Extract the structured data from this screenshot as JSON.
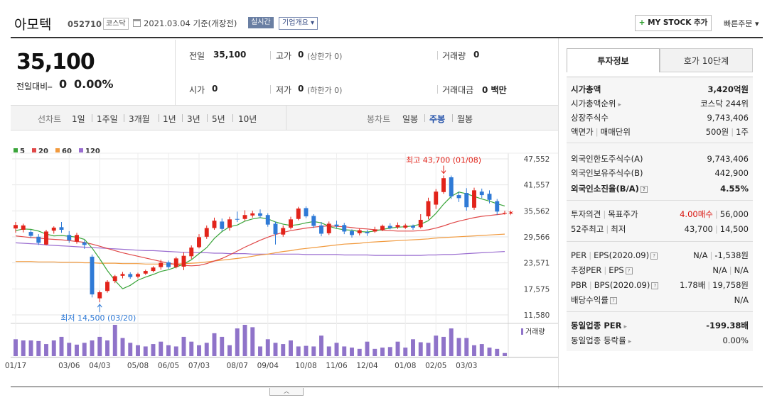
{
  "header": {
    "company": "아모텍",
    "code": "052710",
    "market": "코스닥",
    "date_basis": "2021.03.04 기준(개장전)",
    "realtime_label": "실시간",
    "overview_label": "기업개요 ▾",
    "mystock_plus": "+",
    "mystock_label": " MY STOCK 추가",
    "quick_order_label": "빠른주문 ▾"
  },
  "quote": {
    "price": "35,100",
    "change_label": "전일대비",
    "change_arrow": "═",
    "change_value": "0",
    "change_pct": "0.00%",
    "prev_label": "전일",
    "prev_value": "35,100",
    "high_label": "고가",
    "high_value": "0",
    "high_sub": "(상한가 0)",
    "volume_label": "거래량",
    "volume_value": "0",
    "open_label": "시가",
    "open_value": "0",
    "low_label": "저가",
    "low_value": "0",
    "low_sub": "(하한가 0)",
    "amount_label": "거래대금",
    "amount_value": "0",
    "amount_unit": "백만"
  },
  "range_bar": {
    "line_label": "선차트",
    "line_ranges": [
      "1일",
      "1주일",
      "3개월",
      "1년",
      "3년",
      "5년",
      "10년"
    ],
    "candle_label": "봉차트",
    "candle_ranges": [
      "일봉",
      "주봉",
      "월봉"
    ],
    "active_candle": "주봉"
  },
  "chart_data": {
    "type": "candlestick",
    "legend": [
      {
        "name": "5",
        "color": "#3aa53a"
      },
      {
        "name": "20",
        "color": "#e04848"
      },
      {
        "name": "60",
        "color": "#f19a3e"
      },
      {
        "name": "120",
        "color": "#9a6dd0"
      }
    ],
    "y_ticks": [
      "47,552",
      "41,557",
      "35,562",
      "29,566",
      "23,571",
      "17,575",
      "11,580"
    ],
    "ylim": [
      11580,
      47552
    ],
    "x_ticks": [
      "01/17",
      "03/06",
      "04/03",
      "05/08",
      "06/05",
      "07/03",
      "08/07",
      "09/04",
      "10/08",
      "11/06",
      "12/04",
      "01/08",
      "02/05",
      "03/03"
    ],
    "high_annotation": "최고 43,700 (01/08)",
    "low_annotation": "최저 14,500 (03/20)",
    "volume_label": "거래량",
    "candles": [
      {
        "o": 31500,
        "c": 32300,
        "h": 33000,
        "l": 30500
      },
      {
        "o": 31200,
        "c": 32200,
        "h": 32600,
        "l": 30600
      },
      {
        "o": 30700,
        "c": 29800,
        "h": 31200,
        "l": 29300
      },
      {
        "o": 29600,
        "c": 28200,
        "h": 30200,
        "l": 27700
      },
      {
        "o": 27800,
        "c": 30800,
        "h": 31200,
        "l": 27600
      },
      {
        "o": 31000,
        "c": 31700,
        "h": 32000,
        "l": 30300
      },
      {
        "o": 31800,
        "c": 31200,
        "h": 33000,
        "l": 30500
      },
      {
        "o": 30000,
        "c": 28800,
        "h": 30900,
        "l": 28200
      },
      {
        "o": 28500,
        "c": 30000,
        "h": 30500,
        "l": 28000
      },
      {
        "o": 28300,
        "c": 27700,
        "h": 28800,
        "l": 26800
      },
      {
        "o": 25000,
        "c": 16300,
        "h": 25500,
        "l": 15600
      },
      {
        "o": 15400,
        "c": 16800,
        "h": 17200,
        "l": 14500
      },
      {
        "o": 17100,
        "c": 19200,
        "h": 19600,
        "l": 16700
      },
      {
        "o": 19400,
        "c": 20500,
        "h": 20800,
        "l": 18900
      },
      {
        "o": 20600,
        "c": 21000,
        "h": 21500,
        "l": 20000
      },
      {
        "o": 21000,
        "c": 20300,
        "h": 21400,
        "l": 19900
      },
      {
        "o": 20400,
        "c": 21000,
        "h": 21300,
        "l": 20000
      },
      {
        "o": 21100,
        "c": 21700,
        "h": 22000,
        "l": 20800
      },
      {
        "o": 21700,
        "c": 22500,
        "h": 22800,
        "l": 21400
      },
      {
        "o": 22600,
        "c": 23600,
        "h": 24300,
        "l": 22000
      },
      {
        "o": 23700,
        "c": 22600,
        "h": 24100,
        "l": 22200
      },
      {
        "o": 22600,
        "c": 24600,
        "h": 25000,
        "l": 22300
      },
      {
        "o": 22700,
        "c": 25200,
        "h": 26000,
        "l": 21900
      },
      {
        "o": 25100,
        "c": 27100,
        "h": 27600,
        "l": 24500
      },
      {
        "o": 27200,
        "c": 29500,
        "h": 30200,
        "l": 26900
      },
      {
        "o": 29600,
        "c": 31600,
        "h": 32200,
        "l": 29100
      },
      {
        "o": 31600,
        "c": 33300,
        "h": 34000,
        "l": 31200
      },
      {
        "o": 33100,
        "c": 31400,
        "h": 33800,
        "l": 30900
      },
      {
        "o": 31700,
        "c": 33600,
        "h": 34200,
        "l": 31000
      },
      {
        "o": 33700,
        "c": 33600,
        "h": 35400,
        "l": 33000
      },
      {
        "o": 33700,
        "c": 34600,
        "h": 35700,
        "l": 33300
      },
      {
        "o": 34500,
        "c": 35000,
        "h": 35600,
        "l": 34000
      },
      {
        "o": 35000,
        "c": 34400,
        "h": 35900,
        "l": 33900
      },
      {
        "o": 34600,
        "c": 32400,
        "h": 35000,
        "l": 31900
      },
      {
        "o": 32600,
        "c": 30200,
        "h": 33100,
        "l": 27800
      },
      {
        "o": 30100,
        "c": 31600,
        "h": 32200,
        "l": 29600
      },
      {
        "o": 31700,
        "c": 33600,
        "h": 34200,
        "l": 31300
      },
      {
        "o": 33700,
        "c": 36100,
        "h": 36500,
        "l": 33400
      },
      {
        "o": 36200,
        "c": 34300,
        "h": 36600,
        "l": 33900
      },
      {
        "o": 34400,
        "c": 32100,
        "h": 34800,
        "l": 31600
      },
      {
        "o": 32200,
        "c": 30300,
        "h": 33000,
        "l": 29700
      },
      {
        "o": 30400,
        "c": 32600,
        "h": 33100,
        "l": 30000
      },
      {
        "o": 32400,
        "c": 32000,
        "h": 33300,
        "l": 31600
      },
      {
        "o": 32300,
        "c": 30800,
        "h": 32800,
        "l": 30200
      },
      {
        "o": 30900,
        "c": 30000,
        "h": 31300,
        "l": 29400
      },
      {
        "o": 30400,
        "c": 31100,
        "h": 31500,
        "l": 29900
      },
      {
        "o": 30700,
        "c": 30400,
        "h": 31200,
        "l": 29800
      },
      {
        "o": 30800,
        "c": 31300,
        "h": 31900,
        "l": 30500
      },
      {
        "o": 31200,
        "c": 32100,
        "h": 32400,
        "l": 30900
      },
      {
        "o": 32100,
        "c": 31600,
        "h": 32700,
        "l": 31300
      },
      {
        "o": 31800,
        "c": 32300,
        "h": 32900,
        "l": 31400
      },
      {
        "o": 31700,
        "c": 32200,
        "h": 32600,
        "l": 31400
      },
      {
        "o": 32100,
        "c": 31700,
        "h": 32400,
        "l": 31200
      },
      {
        "o": 31800,
        "c": 33500,
        "h": 34800,
        "l": 31500
      },
      {
        "o": 34300,
        "c": 37800,
        "h": 38600,
        "l": 33600
      },
      {
        "o": 37000,
        "c": 40000,
        "h": 40600,
        "l": 36000
      },
      {
        "o": 39900,
        "c": 43100,
        "h": 43700,
        "l": 39500
      },
      {
        "o": 43300,
        "c": 38900,
        "h": 43700,
        "l": 38300
      },
      {
        "o": 39200,
        "c": 38500,
        "h": 40000,
        "l": 37600
      },
      {
        "o": 39700,
        "c": 36400,
        "h": 40800,
        "l": 35600
      },
      {
        "o": 36300,
        "c": 40300,
        "h": 40900,
        "l": 35800
      },
      {
        "o": 40000,
        "c": 39200,
        "h": 40700,
        "l": 38500
      },
      {
        "o": 39500,
        "c": 38100,
        "h": 40300,
        "l": 37300
      },
      {
        "o": 37800,
        "c": 35400,
        "h": 38300,
        "l": 34600
      },
      {
        "o": 35100,
        "c": 35100,
        "h": 35600,
        "l": 34700
      }
    ],
    "ma5": [
      31000,
      31400,
      31300,
      30900,
      30200,
      29800,
      29900,
      29700,
      29500,
      29000,
      27000,
      24500,
      21800,
      19500,
      17600,
      18400,
      19600,
      20300,
      20900,
      21600,
      22000,
      22600,
      23300,
      24300,
      25700,
      27100,
      29200,
      30800,
      31900,
      32300,
      33200,
      33700,
      34000,
      33700,
      33000,
      32500,
      32200,
      32400,
      32800,
      33100,
      32800,
      32000,
      31500,
      31200,
      31100,
      30800,
      30700,
      30900,
      31300,
      31600,
      31800,
      31900,
      32100,
      32500,
      33300,
      35000,
      37100,
      38900,
      39900,
      39500,
      38900,
      38300,
      37800,
      37200,
      36700
    ],
    "ma20": [
      29800,
      29600,
      29400,
      29300,
      29100,
      29000,
      28900,
      28700,
      28500,
      28300,
      27900,
      27400,
      26900,
      26400,
      25900,
      25500,
      25100,
      24700,
      24300,
      23900,
      23500,
      23200,
      23000,
      22900,
      23000,
      23400,
      24000,
      24600,
      25400,
      26300,
      27200,
      28000,
      28800,
      29500,
      30100,
      30600,
      31000,
      31300,
      31600,
      31800,
      32000,
      32100,
      32000,
      31900,
      31700,
      31500,
      31400,
      31200,
      31100,
      31000,
      30900,
      30900,
      30900,
      31000,
      31200,
      31600,
      32100,
      32700,
      33200,
      33600,
      34000,
      34300,
      34500,
      34700,
      34900
    ],
    "ma60": [
      23900,
      23900,
      23900,
      23800,
      23800,
      23800,
      23700,
      23700,
      23700,
      23600,
      23600,
      23500,
      23500,
      23500,
      23400,
      23400,
      23400,
      23300,
      23300,
      23300,
      23300,
      23300,
      23400,
      23500,
      23600,
      23800,
      24000,
      24200,
      24400,
      24600,
      24800,
      25100,
      25400,
      25600,
      25900,
      26200,
      26400,
      26700,
      26900,
      27100,
      27300,
      27500,
      27700,
      27900,
      28000,
      28100,
      28300,
      28400,
      28500,
      28600,
      28700,
      28800,
      28900,
      29000,
      29100,
      29300,
      29400,
      29500,
      29600,
      29700,
      29800,
      29900,
      30000,
      30100,
      30200
    ],
    "ma120": [
      28200,
      28100,
      28000,
      27900,
      27700,
      27600,
      27500,
      27400,
      27300,
      27200,
      27100,
      27000,
      26900,
      26800,
      26700,
      26600,
      26500,
      26400,
      26400,
      26300,
      26200,
      26100,
      26000,
      26000,
      25900,
      25900,
      25800,
      25800,
      25700,
      25700,
      25700,
      25600,
      25600,
      25600,
      25600,
      25600,
      25600,
      25600,
      25500,
      25500,
      25500,
      25500,
      25500,
      25400,
      25400,
      25400,
      25400,
      25300,
      25300,
      25300,
      25300,
      25300,
      25300,
      25300,
      25400,
      25400,
      25500,
      25500,
      25600,
      25700,
      25800,
      25900,
      26000,
      26100,
      26200
    ],
    "volume": [
      28,
      26,
      26,
      25,
      20,
      26,
      32,
      22,
      19,
      22,
      26,
      32,
      26,
      52,
      30,
      22,
      18,
      16,
      20,
      24,
      18,
      16,
      32,
      24,
      18,
      22,
      38,
      32,
      18,
      46,
      52,
      48,
      16,
      28,
      22,
      20,
      26,
      16,
      17,
      16,
      34,
      16,
      22,
      16,
      14,
      12,
      24,
      12,
      14,
      15,
      24,
      14,
      28,
      23,
      22,
      34,
      32,
      46,
      30,
      30,
      18,
      20,
      14,
      12,
      5
    ]
  },
  "invest_panel": {
    "tab_invest": "투자정보",
    "tab_hoga": "호가 10단계",
    "rows": {
      "market_cap_label": "시가총액",
      "market_cap_value": "3,420억원",
      "cap_rank_label": "시가총액순위",
      "cap_rank_value": "코스닥 244위",
      "shares_label": "상장주식수",
      "shares_value": "9,743,406",
      "par_label": "액면가",
      "par_label2": "매매단위",
      "par_value": "500원",
      "par_value2": "1주",
      "foreign_limit_label": "외국인한도주식수(A)",
      "foreign_limit_value": "9,743,406",
      "foreign_hold_label": "외국인보유주식수(B)",
      "foreign_hold_value": "442,900",
      "foreign_rate_label": "외국인소진율(B/A)",
      "foreign_rate_value": "4.55%",
      "opinion_label": "투자의견",
      "opinion_label2": "목표주가",
      "opinion_value": "4.00매수",
      "target_value": "56,000",
      "week52_label": "52주최고",
      "week52_label2": "최저",
      "week52_high": "43,700",
      "week52_low": "14,500",
      "per_label": "PER",
      "eps_label": "EPS(2020.09)",
      "per_value": "N/A",
      "eps_value": "-1,538원",
      "est_per_label": "추정PER",
      "est_eps_label": "EPS",
      "est_per_value": "N/A",
      "est_eps_value": "N/A",
      "pbr_label": "PBR",
      "bps_label": "BPS(2020.09)",
      "pbr_value": "1.78배",
      "bps_value": "19,758원",
      "dividend_label": "배당수익률",
      "dividend_value": "N/A",
      "sector_per_label": "동일업종 PER",
      "sector_per_value": "-199.38배",
      "sector_rate_label": "동일업종 등락률",
      "sector_rate_value": "0.00%"
    }
  }
}
